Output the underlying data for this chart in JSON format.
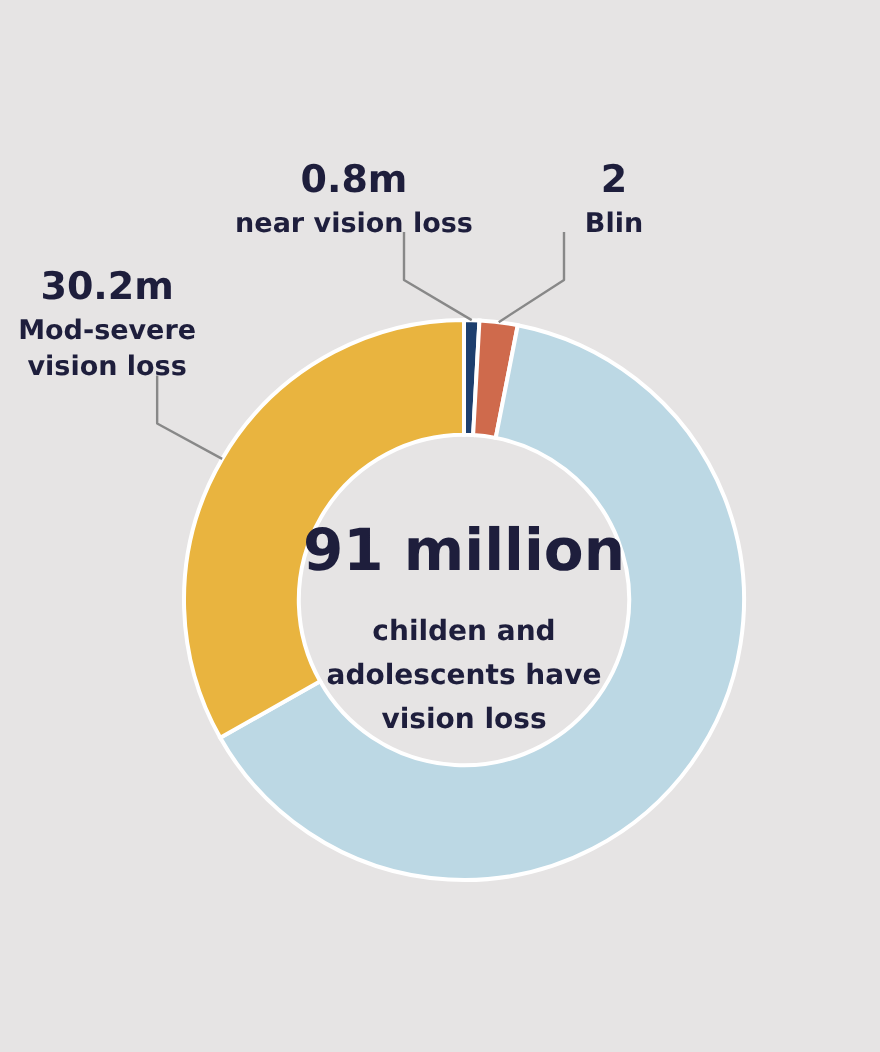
{
  "chart_data": {
    "type": "donut",
    "categories": [
      "near vision loss",
      "Blin",
      null,
      "Mod-severe vision loss"
    ],
    "values": [
      0.8,
      2,
      58,
      30.2
    ],
    "value_labels": [
      "0.8m",
      "2",
      null,
      "30.2m"
    ],
    "colors": [
      "#1d3f6e",
      "#cf6a4c",
      "#bcd8e4",
      "#e9b43f"
    ],
    "annotations": [
      "91 million",
      "childen and adolescents have vision loss"
    ]
  }
}
